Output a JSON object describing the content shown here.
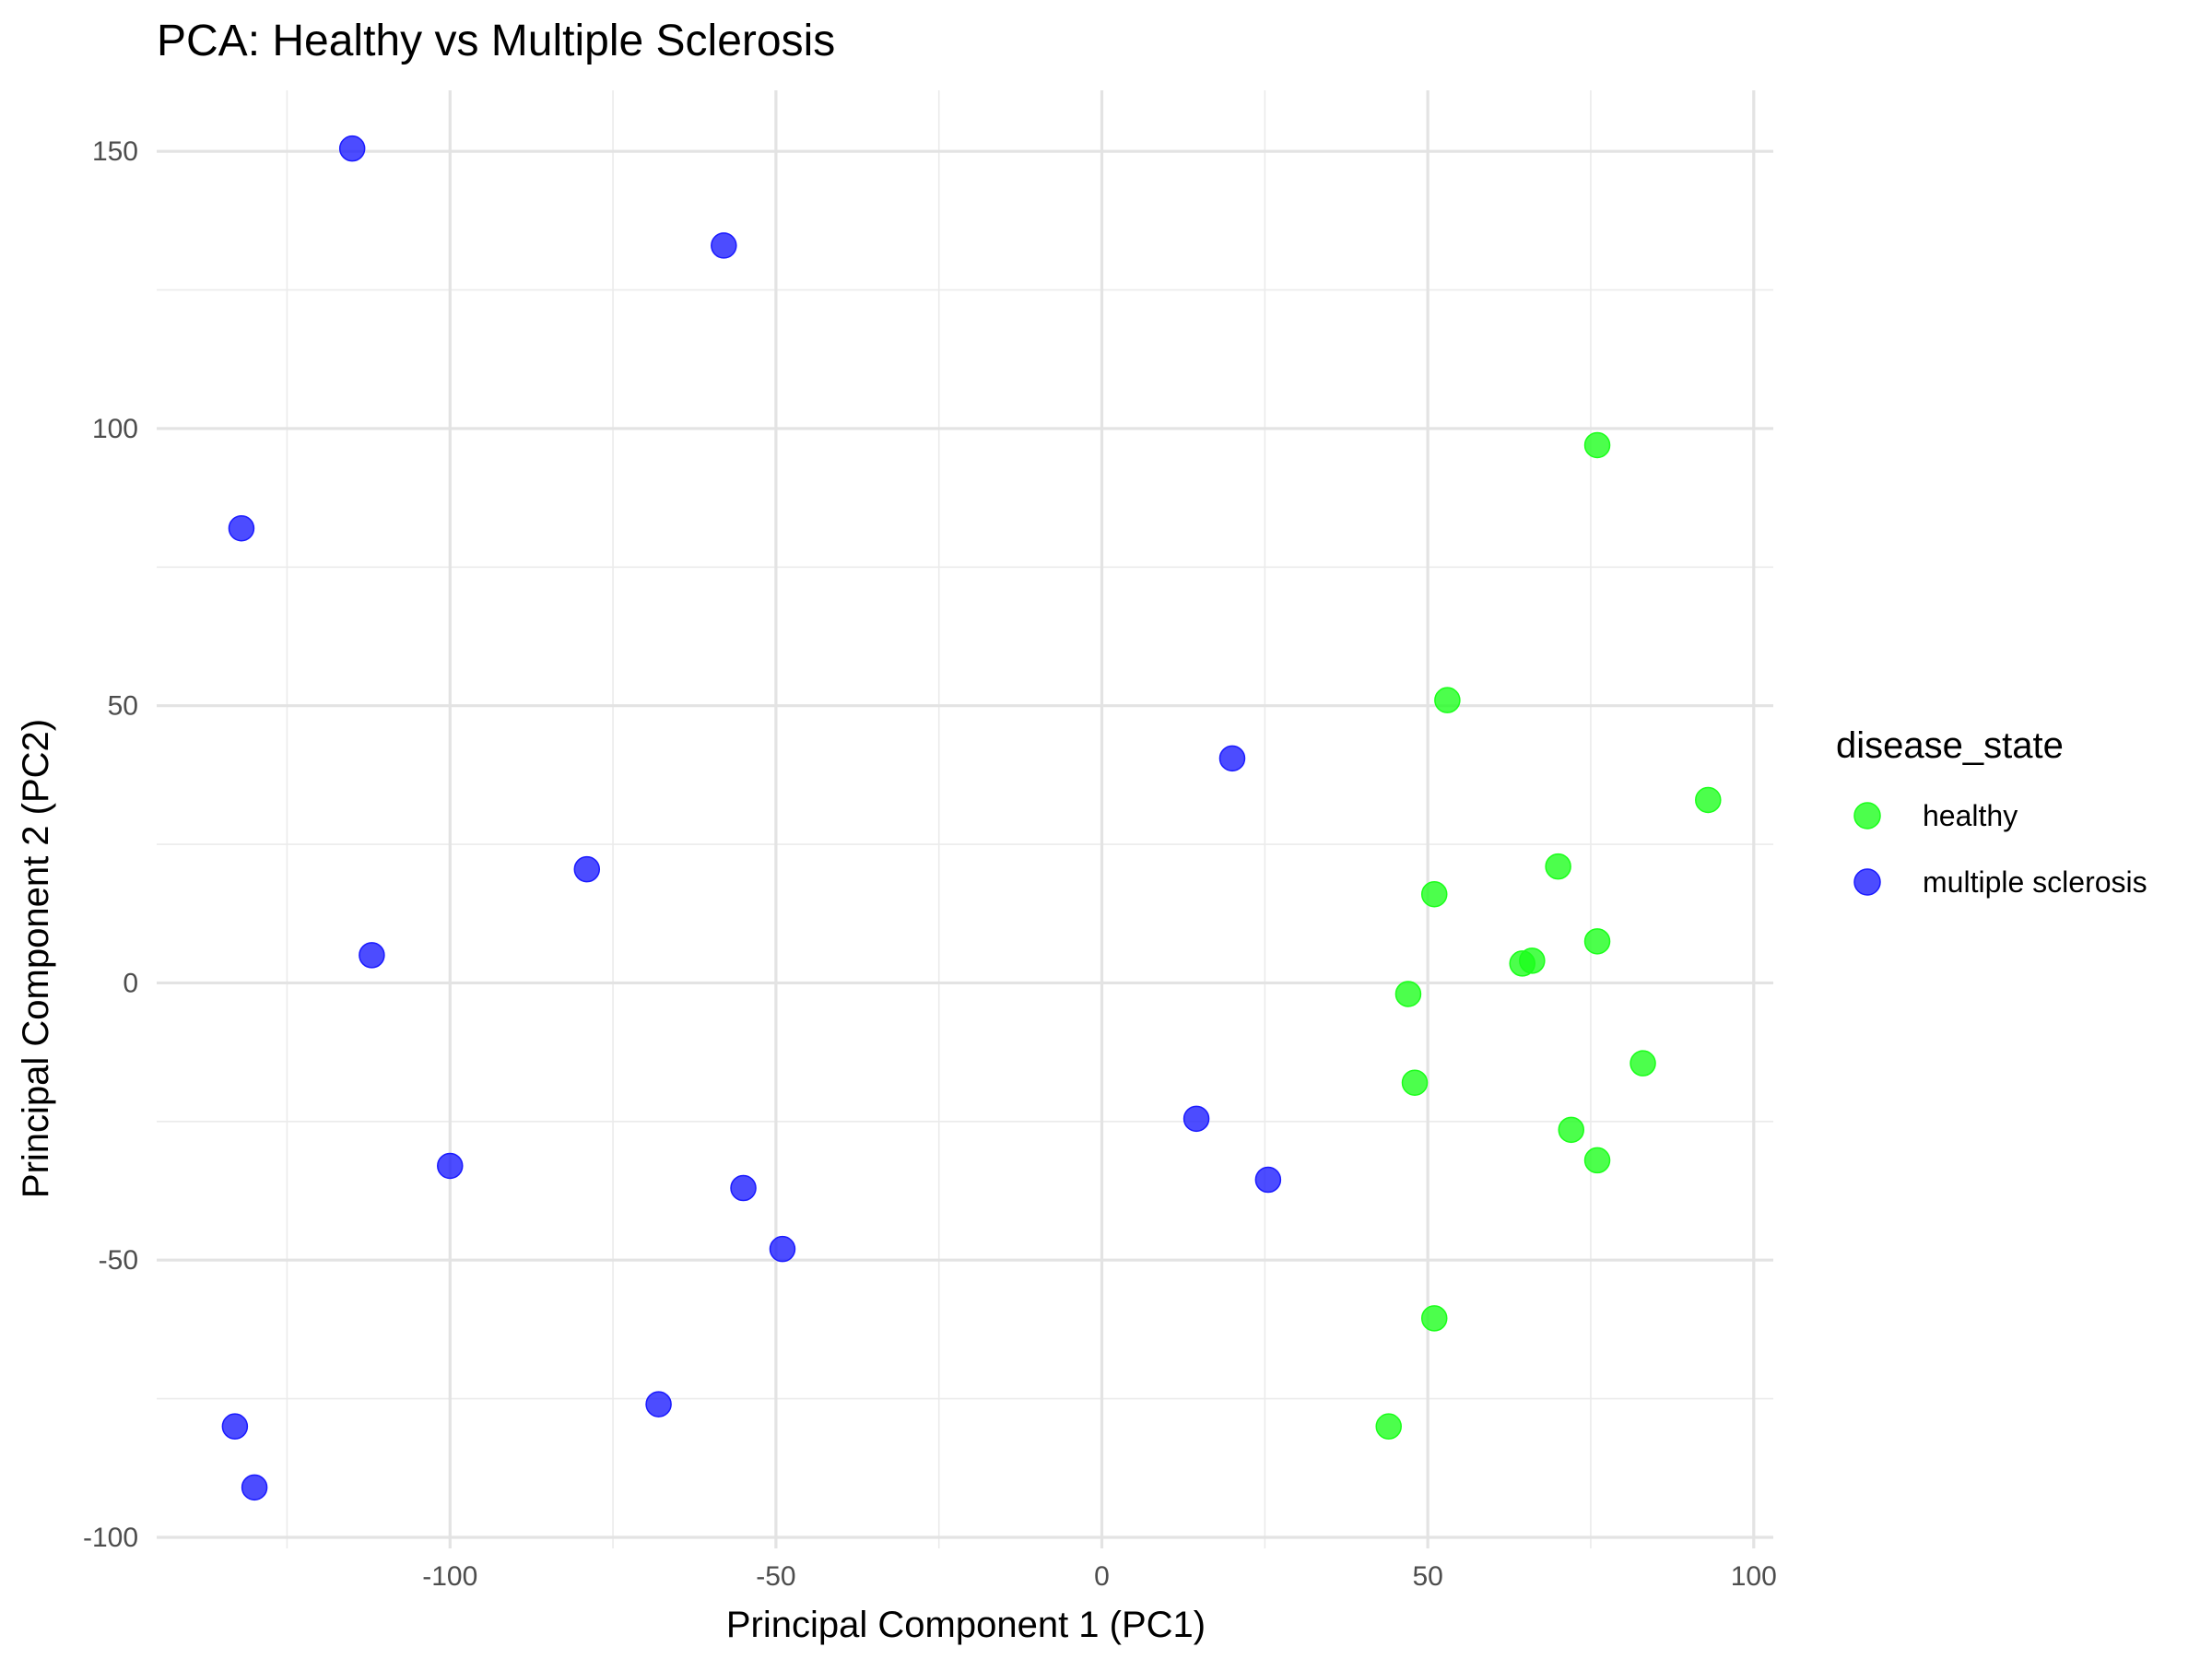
{
  "chart_data": {
    "type": "scatter",
    "title": "PCA: Healthy vs Multiple Sclerosis",
    "xlabel": "Principal Component 1 (PC1)",
    "ylabel": "Principal Component 2 (PC2)",
    "xlim": [
      -145,
      103
    ],
    "ylim": [
      -102,
      161
    ],
    "x_ticks": [
      -100,
      -50,
      0,
      50,
      100
    ],
    "x_tick_labels": [
      "-100",
      "-50",
      "0",
      "50",
      "100"
    ],
    "y_ticks": [
      -100,
      -50,
      0,
      50,
      100,
      150
    ],
    "y_tick_labels": [
      "-100",
      "-50",
      "0",
      "50",
      "100",
      "150"
    ],
    "grid": true,
    "legend": {
      "title": "disease_state",
      "position": "right"
    },
    "series": [
      {
        "name": "healthy",
        "color": "#1AFF1A",
        "points": [
          {
            "x": 76,
            "y": 97
          },
          {
            "x": 53,
            "y": 51
          },
          {
            "x": 93,
            "y": 33
          },
          {
            "x": 70,
            "y": 21
          },
          {
            "x": 51,
            "y": 16
          },
          {
            "x": 76,
            "y": 7.5
          },
          {
            "x": 66,
            "y": 4
          },
          {
            "x": 64.5,
            "y": 3.5
          },
          {
            "x": 47,
            "y": -2
          },
          {
            "x": 83,
            "y": -14.5
          },
          {
            "x": 48,
            "y": -18
          },
          {
            "x": 72,
            "y": -26.5
          },
          {
            "x": 76,
            "y": -32
          },
          {
            "x": 51,
            "y": -60.5
          },
          {
            "x": 44,
            "y": -80
          }
        ]
      },
      {
        "name": "multiple sclerosis",
        "color": "#1A1AFF",
        "points": [
          {
            "x": -115,
            "y": 150.5
          },
          {
            "x": -58,
            "y": 133
          },
          {
            "x": -132,
            "y": 82
          },
          {
            "x": 20,
            "y": 40.5
          },
          {
            "x": -79,
            "y": 20.5
          },
          {
            "x": -112,
            "y": 5
          },
          {
            "x": -100,
            "y": -33
          },
          {
            "x": -55,
            "y": -37
          },
          {
            "x": -49,
            "y": -48
          },
          {
            "x": 14.5,
            "y": -24.5
          },
          {
            "x": 25.5,
            "y": -35.5
          },
          {
            "x": -68,
            "y": -76
          },
          {
            "x": -133,
            "y": -80
          },
          {
            "x": -130,
            "y": -91
          }
        ]
      }
    ]
  }
}
